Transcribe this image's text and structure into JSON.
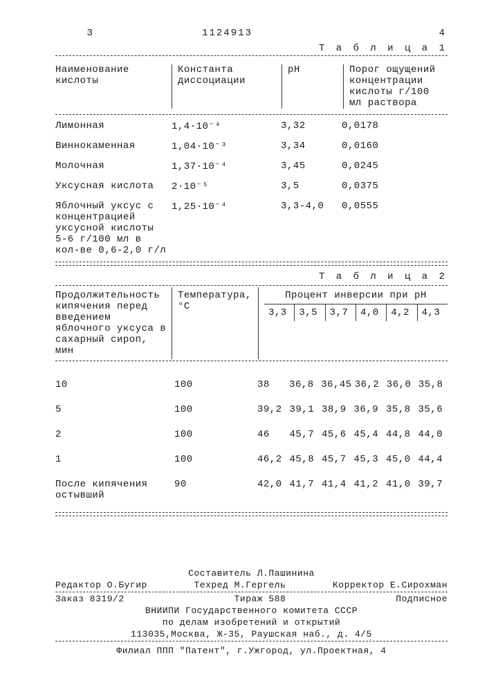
{
  "header": {
    "page_left": "3",
    "doc_number": "1124913",
    "page_right": "4"
  },
  "table1": {
    "title": "Т а б л и ц а 1",
    "columns": {
      "c1": "Наименование кислоты",
      "c2": "Константа диссоциации",
      "c3": "pH",
      "c4": "Порог ощущений концентрации кислоты г/100 мл раствора"
    },
    "rows": [
      {
        "name": "Лимонная",
        "k": "1,4·10⁻⁴",
        "ph": "3,32",
        "thr": "0,0178"
      },
      {
        "name": "Виннокаменная",
        "k": "1,04·10⁻³",
        "ph": "3,34",
        "thr": "0,0160"
      },
      {
        "name": "Молочная",
        "k": "1,37·10⁻⁴",
        "ph": "3,45",
        "thr": "0,0245"
      },
      {
        "name": "Уксусная кислота",
        "k": "2·10⁻⁵",
        "ph": "3,5",
        "thr": "0,0375"
      },
      {
        "name": "Яблочный уксус с концентрацией уксусной кислоты 5-6 г/100 мл в кол-ве 0,6-2,0 г/л",
        "k": "1,25·10⁻⁴",
        "ph": "3,3-4,0",
        "thr": "0,0555"
      }
    ]
  },
  "table2": {
    "title": "Т а б л и ц а 2",
    "columns": {
      "c1": "Продолжительность кипячения перед введением яблочного уксуса в сахарный сироп, мин",
      "c2": "Температура, °С",
      "c3": "Процент инверсии при pH"
    },
    "ph_values": [
      "3,3",
      "3,5",
      "3,7",
      "4,0",
      "4,2",
      "4,3"
    ],
    "rows": [
      {
        "d": "10",
        "t": "100",
        "v": [
          "38",
          "36,8",
          "36,45",
          "36,2",
          "36,0",
          "35,8"
        ]
      },
      {
        "d": "5",
        "t": "100",
        "v": [
          "39,2",
          "39,1",
          "38,9",
          "36,9",
          "35,8",
          "35,6"
        ]
      },
      {
        "d": "2",
        "t": "100",
        "v": [
          "46",
          "45,7",
          "45,6",
          "45,4",
          "44,8",
          "44,0"
        ]
      },
      {
        "d": "1",
        "t": "100",
        "v": [
          "46,2",
          "45,8",
          "45,7",
          "45,3",
          "45,0",
          "44,4"
        ]
      },
      {
        "d": "После кипячения остывший",
        "t": "90",
        "v": [
          "42,0",
          "41,7",
          "41,4",
          "41,2",
          "41,0",
          "39,7"
        ]
      }
    ]
  },
  "footer": {
    "compiler": "Составитель Л.Пашинина",
    "editor": "Редактор О.Бугир",
    "techred": "Техред М.Гергель",
    "corrector": "Корректор Е.Сирохман",
    "order": "Заказ 8319/2",
    "tirage": "Тираж 588",
    "sub": "Подписное",
    "org1": "ВНИИПИ Государственного комитета СССР",
    "org2": "по делам изобретений и открытий",
    "addr1": "113035,Москва, Ж-35, Раушская наб., д. 4/5",
    "addr2": "Филиал ППП \"Патент\", г.Ужгород, ул.Проектная, 4"
  }
}
